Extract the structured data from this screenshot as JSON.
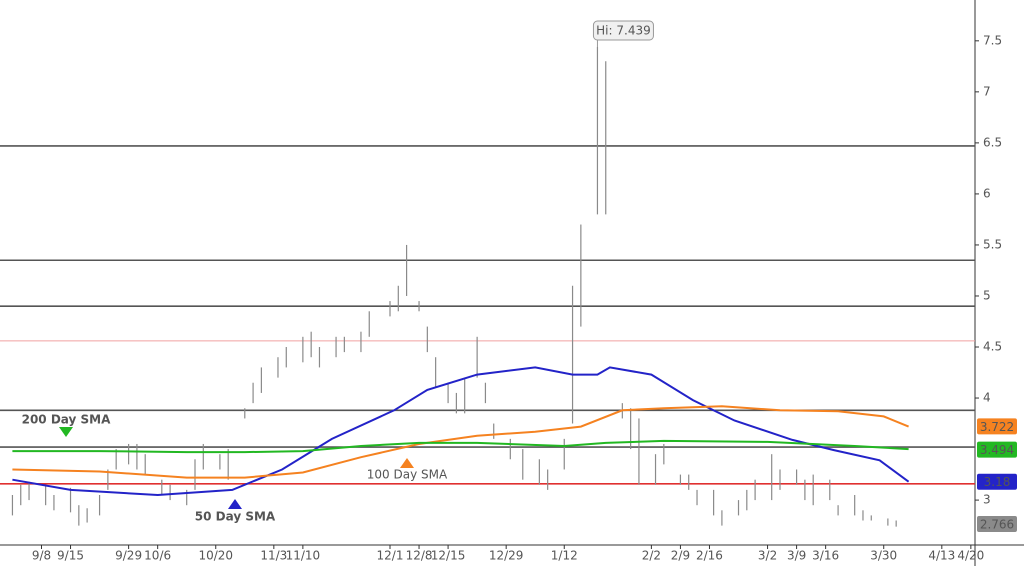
{
  "chart_data": {
    "type": "ohlc",
    "xlim": [
      "8/29",
      "4/21"
    ],
    "ylim": [
      2.56,
      7.9
    ],
    "yticks": [
      3,
      4,
      4.5,
      5,
      5.5,
      6,
      6.5,
      7,
      7.5
    ],
    "xticks": [
      "9/8",
      "9/15",
      "9/29",
      "10/6",
      "10/20",
      "11/3",
      "11/10",
      "12/1",
      "12/8",
      "12/15",
      "12/29",
      "1/12",
      "2/2",
      "2/9",
      "2/16",
      "3/2",
      "3/9",
      "3/16",
      "3/30",
      "4/13",
      "4/20"
    ],
    "bars": {
      "color": "#8a8a8a",
      "x": [
        "9/1",
        "9/3",
        "9/5",
        "9/9",
        "9/11",
        "9/15",
        "9/17",
        "9/19",
        "9/22",
        "9/24",
        "9/26",
        "9/29",
        "10/1",
        "10/3",
        "10/7",
        "10/9",
        "10/13",
        "10/15",
        "10/17",
        "10/21",
        "10/23",
        "10/27",
        "10/29",
        "10/31",
        "11/4",
        "11/6",
        "11/10",
        "11/12",
        "11/14",
        "11/18",
        "11/20",
        "11/24",
        "11/26",
        "12/1",
        "12/3",
        "12/5",
        "12/8",
        "12/10",
        "12/12",
        "12/15",
        "12/17",
        "12/19",
        "12/22",
        "12/24",
        "12/26",
        "12/30",
        "1/2",
        "1/6",
        "1/8",
        "1/12",
        "1/14",
        "1/16",
        "1/20",
        "1/22",
        "1/26",
        "1/28",
        "1/30",
        "2/3",
        "2/5",
        "2/9",
        "2/11",
        "2/13",
        "2/17",
        "2/19",
        "2/23",
        "2/25",
        "2/27",
        "3/3",
        "3/5",
        "3/9",
        "3/11",
        "3/13",
        "3/17",
        "3/19",
        "3/23",
        "3/25",
        "3/27",
        "3/31",
        "4/2"
      ],
      "high": [
        3.05,
        3.15,
        3.18,
        3.15,
        3.05,
        3.12,
        2.95,
        2.92,
        3.05,
        3.3,
        3.5,
        3.55,
        3.55,
        3.45,
        3.2,
        3.15,
        3.1,
        3.4,
        3.55,
        3.45,
        3.5,
        3.9,
        4.15,
        4.3,
        4.4,
        4.5,
        4.6,
        4.65,
        4.5,
        4.6,
        4.6,
        4.65,
        4.85,
        4.95,
        5.1,
        5.5,
        4.95,
        4.7,
        4.4,
        4.15,
        4.05,
        4.2,
        4.6,
        4.15,
        3.75,
        3.6,
        3.5,
        3.4,
        3.3,
        3.6,
        5.1,
        5.7,
        7.439,
        7.3,
        3.95,
        3.9,
        3.8,
        3.45,
        3.55,
        3.25,
        3.25,
        3.1,
        3.1,
        2.9,
        3.0,
        3.1,
        3.2,
        3.45,
        3.3,
        3.3,
        3.2,
        3.25,
        3.2,
        2.95,
        3.05,
        2.9,
        2.85,
        2.82,
        2.8
      ],
      "low": [
        2.85,
        2.95,
        3.0,
        2.95,
        2.9,
        2.88,
        2.75,
        2.78,
        2.85,
        3.1,
        3.3,
        3.35,
        3.3,
        3.25,
        3.05,
        3.0,
        2.95,
        3.1,
        3.3,
        3.3,
        3.2,
        3.8,
        3.95,
        4.05,
        4.2,
        4.3,
        4.35,
        4.4,
        4.3,
        4.4,
        4.45,
        4.45,
        4.6,
        4.8,
        4.85,
        5.0,
        4.85,
        4.45,
        4.1,
        3.95,
        3.85,
        3.85,
        4.2,
        3.95,
        3.6,
        3.4,
        3.2,
        3.15,
        3.1,
        3.3,
        3.75,
        4.7,
        5.8,
        5.8,
        3.8,
        3.5,
        3.15,
        3.15,
        3.35,
        3.15,
        3.1,
        2.95,
        2.85,
        2.75,
        2.85,
        2.9,
        3.0,
        3.0,
        3.1,
        3.15,
        3.0,
        2.95,
        3.0,
        2.85,
        2.85,
        2.8,
        2.8,
        2.75,
        2.74
      ]
    },
    "series": [
      {
        "name": "50 Day SMA",
        "color": "#2323c8",
        "x": [
          "9/1",
          "9/15",
          "10/6",
          "10/24",
          "11/5",
          "11/17",
          "12/2",
          "12/10",
          "12/22",
          "1/5",
          "1/14",
          "1/20",
          "1/23",
          "2/2",
          "2/12",
          "2/22",
          "3/8",
          "3/18",
          "3/29",
          "4/5"
        ],
        "values": [
          3.2,
          3.1,
          3.05,
          3.1,
          3.3,
          3.6,
          3.88,
          4.08,
          4.23,
          4.3,
          4.23,
          4.23,
          4.3,
          4.23,
          3.98,
          3.78,
          3.59,
          3.49,
          3.39,
          3.18
        ]
      },
      {
        "name": "100 Day SMA",
        "color": "#f58220",
        "x": [
          "9/1",
          "9/22",
          "10/13",
          "10/27",
          "11/10",
          "11/24",
          "12/8",
          "12/22",
          "1/5",
          "1/16",
          "1/26",
          "2/5",
          "2/19",
          "3/5",
          "3/19",
          "3/30",
          "4/5"
        ],
        "values": [
          3.3,
          3.28,
          3.22,
          3.22,
          3.27,
          3.42,
          3.55,
          3.63,
          3.67,
          3.72,
          3.88,
          3.9,
          3.92,
          3.88,
          3.87,
          3.82,
          3.72
        ]
      },
      {
        "name": "200 Day SMA",
        "color": "#22b822",
        "x": [
          "9/1",
          "9/22",
          "10/13",
          "10/27",
          "11/10",
          "11/24",
          "12/8",
          "12/22",
          "1/12",
          "1/22",
          "2/5",
          "3/2",
          "3/23",
          "4/5"
        ],
        "values": [
          3.48,
          3.48,
          3.47,
          3.47,
          3.48,
          3.53,
          3.56,
          3.56,
          3.53,
          3.56,
          3.58,
          3.57,
          3.53,
          3.5
        ]
      }
    ],
    "levels": [
      {
        "value": 6.47,
        "color": "#555555"
      },
      {
        "value": 5.35,
        "color": "#555555"
      },
      {
        "value": 4.9,
        "color": "#555555"
      },
      {
        "value": 3.88,
        "color": "#555555"
      },
      {
        "value": 3.52,
        "color": "#555555"
      },
      {
        "value": 4.56,
        "color": "#f0a0a0"
      },
      {
        "value": 3.16,
        "color": "#e03030"
      }
    ],
    "price_tags": [
      {
        "value": 3.722,
        "color": "#f58220"
      },
      {
        "value": 3.494,
        "color": "#22b822"
      },
      {
        "value": 3.18,
        "color": "#2323c8"
      },
      {
        "value": 2.766,
        "color": "#8a8a8a"
      }
    ],
    "high_label": {
      "text": "Hi: 7.439",
      "value": 7.439,
      "x": "1/20"
    }
  }
}
